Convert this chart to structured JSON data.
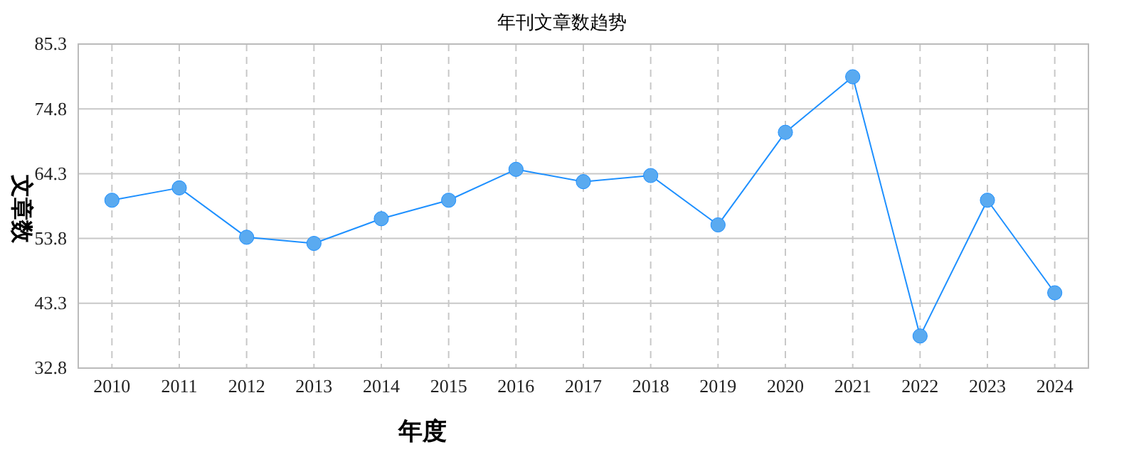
{
  "chart_data": {
    "type": "line",
    "title": "年刊文章数趋势",
    "xlabel": "年度",
    "ylabel": "文章数",
    "categories": [
      "2010",
      "2011",
      "2012",
      "2013",
      "2014",
      "2015",
      "2016",
      "2017",
      "2018",
      "2019",
      "2020",
      "2021",
      "2022",
      "2023",
      "2024"
    ],
    "series": [
      {
        "color": "#1e90ff",
        "values": [
          60,
          62,
          54,
          53,
          57,
          60,
          65,
          63,
          64,
          56,
          71,
          80,
          38,
          60,
          45
        ]
      }
    ],
    "ylim": [
      32.8,
      85.3
    ],
    "yticks": [
      32.8,
      43.3,
      53.8,
      64.3,
      74.8,
      85.3
    ],
    "grid": true,
    "marker": "circle",
    "line_style": "solid"
  }
}
